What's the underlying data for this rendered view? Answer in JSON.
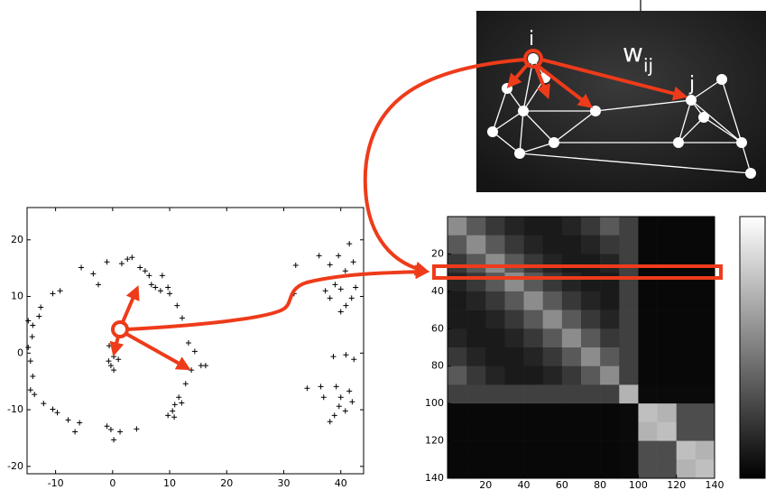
{
  "chart_data": [
    {
      "type": "scatter",
      "marker": "+",
      "color": "#000000",
      "x": [
        -1.0,
        2.6,
        3.4,
        1.6,
        4.8,
        5.7,
        6.4,
        7.5,
        8.4,
        9.7,
        8.7,
        10.0,
        6.8,
        11.3,
        12.2,
        13.3,
        14.4,
        15.5,
        16.3,
        13.8,
        12.8,
        11.6,
        10.9,
        10.5,
        9.7,
        10.8,
        12.1,
        4.2,
        1.3,
        0.2,
        -0.3,
        -1.0,
        -5.8,
        -6.6,
        -7.8,
        -9.7,
        -10.5,
        -12.1,
        -13.7,
        -14.4,
        -14.0,
        -14.4,
        -14.8,
        -14.1,
        -12.9,
        -12.6,
        -10.5,
        -9.2,
        -5.5,
        -3.4,
        -2.5,
        -14.8,
        -14.0,
        0.2,
        -0.7,
        -0.3,
        0.2,
        1.0,
        -0.6,
        32.1,
        36.2,
        38.1,
        39.6,
        41.5,
        42.2,
        40.8,
        39.0,
        40.0,
        42.6,
        37.3,
        38.1,
        40.9,
        40.0,
        41.9,
        31.8,
        38.7,
        40.9,
        42.3,
        34.1,
        36.5,
        39.2,
        40.0,
        41.5,
        39.7,
        38.9,
        40.8,
        42.0,
        38.1,
        37.0
      ],
      "y": [
        16.1,
        16.6,
        16.9,
        15.8,
        15.1,
        14.5,
        13.7,
        11.6,
        11.0,
        11.6,
        13.7,
        10.5,
        12.1,
        8.4,
        6.2,
        1.8,
        0.3,
        -2.2,
        -2.2,
        -3.0,
        -5.4,
        -7.8,
        -9.1,
        -10.2,
        -11.0,
        -11.3,
        -8.8,
        -13.4,
        -13.9,
        -15.3,
        -13.5,
        -12.9,
        -12.3,
        -13.9,
        -11.8,
        -10.5,
        -9.9,
        -8.9,
        -7.3,
        -6.5,
        -4.1,
        -1.4,
        1.0,
        2.9,
        6.5,
        8.1,
        10.5,
        11.0,
        15.1,
        14.0,
        12.1,
        5.7,
        4.9,
        -0.6,
        -1.4,
        -2.2,
        -3.0,
        -1.1,
        1.3,
        15.5,
        17.2,
        15.6,
        17.2,
        19.3,
        16.1,
        14.5,
        12.1,
        11.3,
        11.6,
        11.0,
        9.7,
        8.4,
        7.3,
        9.7,
        10.5,
        -0.6,
        -0.3,
        -1.1,
        -6.2,
        -5.9,
        -5.9,
        -7.8,
        -6.7,
        -9.4,
        -11.0,
        -10.2,
        -8.6,
        -12.1,
        -7.8
      ],
      "xlim": [
        -15,
        44
      ],
      "ylim": [
        -21.3,
        25.7
      ],
      "xticks": [
        -10,
        0,
        10,
        20,
        30,
        40
      ],
      "yticks": [
        -20,
        -10,
        0,
        10,
        20
      ]
    },
    {
      "type": "heatmap",
      "colormap": "gray",
      "colorbar": true,
      "zlim": [
        0,
        1
      ],
      "xlim": [
        0,
        140
      ],
      "ylim": [
        0,
        140
      ],
      "yreverse": true,
      "xticks": [
        20,
        40,
        60,
        80,
        100,
        120,
        140
      ],
      "yticks": [
        20,
        40,
        60,
        80,
        100,
        120,
        140
      ],
      "z": [
        [
          0.55,
          0.35,
          0.22,
          0.14,
          0.1,
          0.1,
          0.14,
          0.22,
          0.35,
          0.25,
          0.03,
          0.03,
          0.03,
          0.03
        ],
        [
          0.35,
          0.55,
          0.35,
          0.22,
          0.14,
          0.1,
          0.1,
          0.14,
          0.22,
          0.25,
          0.03,
          0.03,
          0.03,
          0.03
        ],
        [
          0.22,
          0.35,
          0.55,
          0.35,
          0.22,
          0.14,
          0.1,
          0.1,
          0.14,
          0.25,
          0.03,
          0.03,
          0.03,
          0.03
        ],
        [
          0.14,
          0.22,
          0.35,
          0.55,
          0.35,
          0.22,
          0.14,
          0.1,
          0.1,
          0.25,
          0.03,
          0.03,
          0.03,
          0.03
        ],
        [
          0.1,
          0.14,
          0.22,
          0.35,
          0.55,
          0.35,
          0.22,
          0.14,
          0.1,
          0.25,
          0.03,
          0.03,
          0.03,
          0.03
        ],
        [
          0.1,
          0.1,
          0.14,
          0.22,
          0.35,
          0.55,
          0.35,
          0.22,
          0.14,
          0.25,
          0.03,
          0.03,
          0.03,
          0.03
        ],
        [
          0.14,
          0.1,
          0.1,
          0.14,
          0.22,
          0.35,
          0.55,
          0.35,
          0.22,
          0.25,
          0.03,
          0.03,
          0.03,
          0.03
        ],
        [
          0.22,
          0.14,
          0.1,
          0.1,
          0.14,
          0.22,
          0.35,
          0.55,
          0.35,
          0.25,
          0.03,
          0.03,
          0.03,
          0.03
        ],
        [
          0.35,
          0.22,
          0.14,
          0.1,
          0.1,
          0.14,
          0.22,
          0.35,
          0.55,
          0.25,
          0.03,
          0.03,
          0.03,
          0.03
        ],
        [
          0.25,
          0.25,
          0.25,
          0.25,
          0.25,
          0.25,
          0.25,
          0.25,
          0.25,
          0.7,
          0.04,
          0.04,
          0.04,
          0.04
        ],
        [
          0.03,
          0.03,
          0.03,
          0.03,
          0.03,
          0.03,
          0.03,
          0.03,
          0.03,
          0.04,
          0.75,
          0.7,
          0.3,
          0.3
        ],
        [
          0.03,
          0.03,
          0.03,
          0.03,
          0.03,
          0.03,
          0.03,
          0.03,
          0.03,
          0.04,
          0.7,
          0.75,
          0.3,
          0.3
        ],
        [
          0.03,
          0.03,
          0.03,
          0.03,
          0.03,
          0.03,
          0.03,
          0.03,
          0.03,
          0.04,
          0.3,
          0.3,
          0.75,
          0.7
        ],
        [
          0.03,
          0.03,
          0.03,
          0.03,
          0.03,
          0.03,
          0.03,
          0.03,
          0.03,
          0.04,
          0.3,
          0.3,
          0.7,
          0.75
        ]
      ]
    }
  ],
  "diagram": {
    "node_i_label": "i",
    "weight_label": "w",
    "weight_subscript": "ij",
    "node_j_label": "j"
  }
}
